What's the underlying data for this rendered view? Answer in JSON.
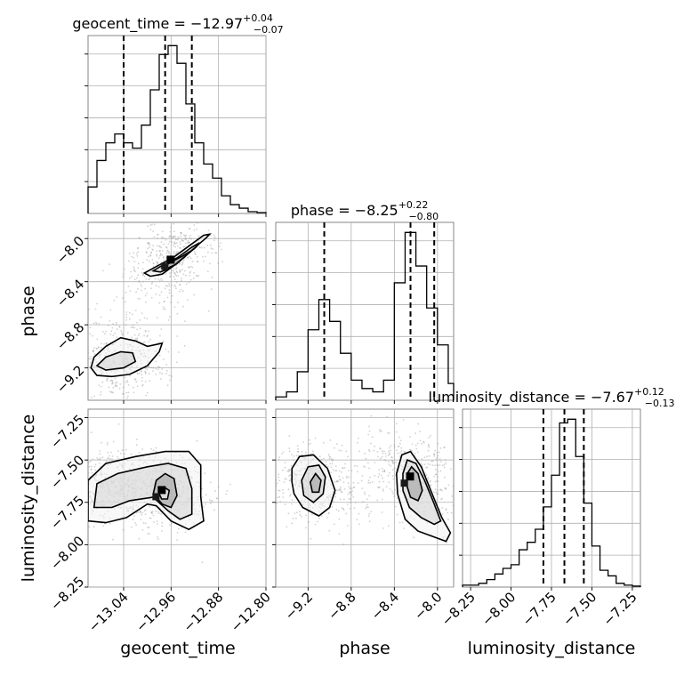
{
  "chart_data": {
    "type": "corner",
    "parameters": [
      {
        "name": "geocent_time",
        "label": "geocent_time",
        "title_main": "geocent_time = −12.97",
        "title_plus": "+0.04",
        "title_minus": "−0.07",
        "range": [
          -13.1,
          -12.8
        ],
        "ticks": [
          -13.04,
          -12.96,
          -12.88,
          -12.8
        ],
        "tick_labels": [
          "−13.04",
          "−12.96",
          "−12.88",
          "−12.80"
        ],
        "quantiles": [
          -13.04,
          -12.97,
          -12.925
        ],
        "hist": {
          "edges": [
            -13.1,
            -13.085,
            -13.07,
            -13.055,
            -13.04,
            -13.025,
            -13.01,
            -12.995,
            -12.98,
            -12.965,
            -12.95,
            -12.935,
            -12.92,
            -12.905,
            -12.89,
            -12.875,
            -12.86,
            -12.845,
            -12.83,
            -12.815,
            -12.8
          ],
          "counts": [
            0.15,
            0.3,
            0.4,
            0.45,
            0.4,
            0.37,
            0.5,
            0.7,
            0.9,
            0.95,
            0.85,
            0.62,
            0.4,
            0.28,
            0.2,
            0.1,
            0.05,
            0.03,
            0.01,
            0.005
          ]
        }
      },
      {
        "name": "phase",
        "label": "phase",
        "title_main": "phase = −8.25",
        "title_plus": "+0.22",
        "title_minus": "−0.80",
        "range": [
          -9.5,
          -7.85
        ],
        "ticks": [
          -9.2,
          -8.8,
          -8.4,
          -8.0
        ],
        "tick_labels": [
          "−9.2",
          "−8.8",
          "−8.4",
          "−8.0"
        ],
        "quantiles": [
          -9.05,
          -8.25,
          -8.03
        ],
        "hist": {
          "edges": [
            -9.5,
            -9.4,
            -9.3,
            -9.2,
            -9.1,
            -9.0,
            -8.9,
            -8.8,
            -8.7,
            -8.6,
            -8.5,
            -8.4,
            -8.3,
            -8.2,
            -8.1,
            -8.0,
            -7.9,
            -7.85
          ],
          "counts": [
            0.02,
            0.05,
            0.17,
            0.42,
            0.6,
            0.47,
            0.28,
            0.12,
            0.07,
            0.05,
            0.12,
            0.7,
            1.0,
            0.8,
            0.55,
            0.33,
            0.1
          ]
        }
      },
      {
        "name": "luminosity_distance",
        "label": "luminosity_distance",
        "title_main": "luminosity_distance = −7.67",
        "title_plus": "+0.12",
        "title_minus": "−0.13",
        "range": [
          -8.3,
          -7.2
        ],
        "ticks": [
          -8.25,
          -8.0,
          -7.75,
          -7.5,
          -7.25
        ],
        "tick_labels": [
          "−8.25",
          "−8.00",
          "−7.75",
          "−7.50",
          "−7.25"
        ],
        "quantiles": [
          -7.8,
          -7.67,
          -7.55
        ],
        "hist": {
          "edges": [
            -8.3,
            -8.25,
            -8.2,
            -8.15,
            -8.1,
            -8.05,
            -8.0,
            -7.95,
            -7.9,
            -7.85,
            -7.8,
            -7.75,
            -7.7,
            -7.65,
            -7.6,
            -7.55,
            -7.5,
            -7.45,
            -7.4,
            -7.35,
            -7.3,
            -7.25,
            -7.2
          ],
          "counts": [
            0.01,
            0.01,
            0.02,
            0.04,
            0.07,
            0.1,
            0.12,
            0.2,
            0.24,
            0.31,
            0.43,
            0.6,
            0.88,
            0.9,
            0.7,
            0.45,
            0.22,
            0.09,
            0.06,
            0.02,
            0.01,
            0.005
          ]
        }
      }
    ],
    "pairs": [
      {
        "x": "geocent_time",
        "y": "phase",
        "xlim": [
          -13.1,
          -12.8
        ],
        "ylim": [
          -9.5,
          -7.85
        ],
        "density_peaks": [
          [
            -12.96,
            -8.2
          ],
          [
            -13.05,
            -9.1
          ]
        ],
        "contours": [
          [
            [
              -13.005,
              -8.32
            ],
            [
              -12.985,
              -8.26
            ],
            [
              -12.955,
              -8.17
            ],
            [
              -12.925,
              -8.05
            ],
            [
              -12.905,
              -7.97
            ],
            [
              -12.895,
              -7.96
            ],
            [
              -12.902,
              -8.0
            ],
            [
              -12.93,
              -8.13
            ],
            [
              -12.955,
              -8.25
            ],
            [
              -12.975,
              -8.33
            ],
            [
              -12.995,
              -8.35
            ],
            [
              -13.005,
              -8.32
            ]
          ],
          [
            [
              -12.99,
              -8.3
            ],
            [
              -12.975,
              -8.25
            ],
            [
              -12.95,
              -8.18
            ],
            [
              -12.925,
              -8.08
            ],
            [
              -12.912,
              -8.04
            ],
            [
              -12.918,
              -8.08
            ],
            [
              -12.94,
              -8.18
            ],
            [
              -12.96,
              -8.27
            ],
            [
              -12.978,
              -8.31
            ],
            [
              -12.99,
              -8.3
            ]
          ],
          [
            [
              -12.975,
              -8.27
            ],
            [
              -12.96,
              -8.22
            ],
            [
              -12.94,
              -8.16
            ],
            [
              -12.928,
              -8.12
            ],
            [
              -12.935,
              -8.16
            ],
            [
              -12.952,
              -8.24
            ],
            [
              -12.968,
              -8.28
            ],
            [
              -12.975,
              -8.27
            ]
          ],
          [
            [
              -13.095,
              -9.2
            ],
            [
              -13.09,
              -9.1
            ],
            [
              -13.07,
              -9.0
            ],
            [
              -13.045,
              -8.92
            ],
            [
              -13.02,
              -8.95
            ],
            [
              -13.0,
              -9.0
            ],
            [
              -12.975,
              -8.97
            ],
            [
              -12.98,
              -9.05
            ],
            [
              -13.0,
              -9.18
            ],
            [
              -13.03,
              -9.26
            ],
            [
              -13.06,
              -9.28
            ],
            [
              -13.085,
              -9.27
            ],
            [
              -13.095,
              -9.2
            ]
          ],
          [
            [
              -13.085,
              -9.18
            ],
            [
              -13.07,
              -9.1
            ],
            [
              -13.045,
              -9.05
            ],
            [
              -13.025,
              -9.06
            ],
            [
              -13.02,
              -9.14
            ],
            [
              -13.04,
              -9.2
            ],
            [
              -13.07,
              -9.22
            ],
            [
              -13.085,
              -9.18
            ]
          ]
        ]
      },
      {
        "x": "geocent_time",
        "y": "luminosity_distance",
        "xlim": [
          -13.1,
          -12.8
        ],
        "ylim": [
          -8.25,
          -7.2
        ],
        "density_peaks": [
          [
            -12.975,
            -7.68
          ],
          [
            -13.07,
            -7.65
          ]
        ],
        "contours": [
          [
            [
              -13.1,
              -7.86
            ],
            [
              -13.1,
              -7.62
            ],
            [
              -13.07,
              -7.52
            ],
            [
              -13.02,
              -7.48
            ],
            [
              -12.97,
              -7.45
            ],
            [
              -12.93,
              -7.45
            ],
            [
              -12.91,
              -7.53
            ],
            [
              -12.91,
              -7.72
            ],
            [
              -12.905,
              -7.86
            ],
            [
              -12.93,
              -7.91
            ],
            [
              -12.96,
              -7.86
            ],
            [
              -12.985,
              -7.77
            ],
            [
              -13.0,
              -7.76
            ],
            [
              -13.035,
              -7.84
            ],
            [
              -13.07,
              -7.87
            ],
            [
              -13.1,
              -7.86
            ]
          ],
          [
            [
              -13.09,
              -7.78
            ],
            [
              -13.085,
              -7.64
            ],
            [
              -13.05,
              -7.58
            ],
            [
              -13.0,
              -7.54
            ],
            [
              -12.965,
              -7.52
            ],
            [
              -12.935,
              -7.55
            ],
            [
              -12.925,
              -7.67
            ],
            [
              -12.925,
              -7.82
            ],
            [
              -12.945,
              -7.85
            ],
            [
              -12.965,
              -7.8
            ],
            [
              -12.99,
              -7.72
            ],
            [
              -13.03,
              -7.74
            ],
            [
              -13.06,
              -7.78
            ],
            [
              -13.09,
              -7.78
            ]
          ],
          [
            [
              -12.99,
              -7.7
            ],
            [
              -12.985,
              -7.62
            ],
            [
              -12.97,
              -7.58
            ],
            [
              -12.955,
              -7.61
            ],
            [
              -12.95,
              -7.71
            ],
            [
              -12.96,
              -7.78
            ],
            [
              -12.975,
              -7.76
            ],
            [
              -12.99,
              -7.7
            ]
          ],
          [
            [
              -12.98,
              -7.7
            ],
            [
              -12.972,
              -7.66
            ],
            [
              -12.963,
              -7.68
            ],
            [
              -12.966,
              -7.73
            ],
            [
              -12.976,
              -7.73
            ],
            [
              -12.98,
              -7.7
            ]
          ]
        ]
      },
      {
        "x": "phase",
        "y": "luminosity_distance",
        "xlim": [
          -9.5,
          -7.85
        ],
        "ylim": [
          -8.25,
          -7.2
        ],
        "density_peaks": [
          [
            -8.25,
            -7.6
          ],
          [
            -9.15,
            -7.63
          ]
        ],
        "contours": [
          [
            [
              -9.35,
              -7.63
            ],
            [
              -9.35,
              -7.55
            ],
            [
              -9.28,
              -7.48
            ],
            [
              -9.15,
              -7.47
            ],
            [
              -9.02,
              -7.55
            ],
            [
              -8.95,
              -7.68
            ],
            [
              -9.0,
              -7.78
            ],
            [
              -9.1,
              -7.83
            ],
            [
              -9.25,
              -7.78
            ],
            [
              -9.33,
              -7.7
            ],
            [
              -9.35,
              -7.63
            ]
          ],
          [
            [
              -9.26,
              -7.62
            ],
            [
              -9.2,
              -7.54
            ],
            [
              -9.1,
              -7.53
            ],
            [
              -9.04,
              -7.6
            ],
            [
              -9.06,
              -7.7
            ],
            [
              -9.15,
              -7.75
            ],
            [
              -9.24,
              -7.71
            ],
            [
              -9.26,
              -7.62
            ]
          ],
          [
            [
              -9.18,
              -7.63
            ],
            [
              -9.13,
              -7.58
            ],
            [
              -9.08,
              -7.62
            ],
            [
              -9.1,
              -7.69
            ],
            [
              -9.16,
              -7.69
            ],
            [
              -9.18,
              -7.63
            ]
          ],
          [
            [
              -8.38,
              -7.58
            ],
            [
              -8.33,
              -7.47
            ],
            [
              -8.25,
              -7.45
            ],
            [
              -8.15,
              -7.54
            ],
            [
              -8.05,
              -7.7
            ],
            [
              -7.96,
              -7.84
            ],
            [
              -7.88,
              -7.93
            ],
            [
              -7.92,
              -7.98
            ],
            [
              -8.05,
              -7.95
            ],
            [
              -8.18,
              -7.92
            ],
            [
              -8.3,
              -7.85
            ],
            [
              -8.37,
              -7.7
            ],
            [
              -8.38,
              -7.58
            ]
          ],
          [
            [
              -8.32,
              -7.58
            ],
            [
              -8.28,
              -7.5
            ],
            [
              -8.2,
              -7.52
            ],
            [
              -8.12,
              -7.62
            ],
            [
              -8.03,
              -7.76
            ],
            [
              -7.97,
              -7.86
            ],
            [
              -8.03,
              -7.88
            ],
            [
              -8.15,
              -7.84
            ],
            [
              -8.26,
              -7.78
            ],
            [
              -8.32,
              -7.68
            ],
            [
              -8.32,
              -7.58
            ]
          ],
          [
            [
              -8.28,
              -7.58
            ],
            [
              -8.24,
              -7.54
            ],
            [
              -8.18,
              -7.58
            ],
            [
              -8.14,
              -7.68
            ],
            [
              -8.18,
              -7.74
            ],
            [
              -8.25,
              -7.72
            ],
            [
              -8.28,
              -7.66
            ],
            [
              -8.28,
              -7.58
            ]
          ]
        ]
      }
    ],
    "grid": true
  }
}
